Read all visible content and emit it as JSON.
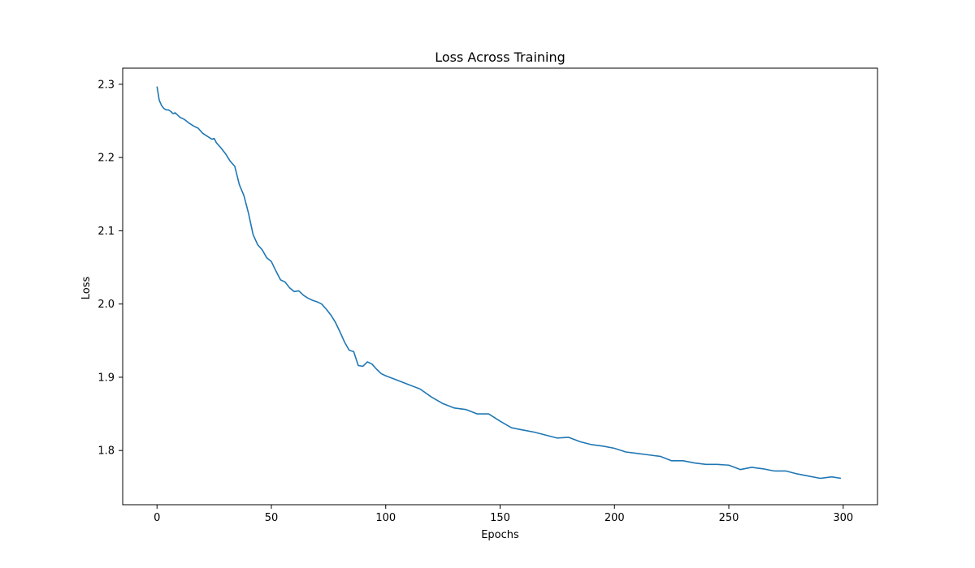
{
  "chart_data": {
    "type": "line",
    "title": "Loss Across Training",
    "xlabel": "Epochs",
    "ylabel": "Loss",
    "xlim": [
      -15,
      315
    ],
    "ylim": [
      1.726,
      2.322
    ],
    "xticks": [
      0,
      50,
      100,
      150,
      200,
      250,
      300
    ],
    "yticks": [
      1.8,
      1.9,
      2.0,
      2.1,
      2.2,
      2.3
    ],
    "grid": false,
    "color": "#1f77b4",
    "series": [
      {
        "x": [
          0,
          1,
          2,
          3,
          4,
          5,
          6,
          7,
          8,
          9,
          10,
          12,
          14,
          16,
          18,
          20,
          22,
          24,
          25,
          26,
          28,
          30,
          32,
          34,
          36,
          38,
          40,
          42,
          44,
          46,
          48,
          50,
          52,
          54,
          56,
          58,
          60,
          62,
          64,
          66,
          68,
          70,
          72,
          74,
          76,
          78,
          80,
          82,
          84,
          86,
          88,
          90,
          92,
          94,
          96,
          98,
          100,
          105,
          110,
          115,
          120,
          125,
          130,
          135,
          140,
          145,
          150,
          155,
          160,
          165,
          170,
          175,
          180,
          185,
          190,
          195,
          200,
          205,
          210,
          215,
          220,
          225,
          230,
          235,
          240,
          245,
          250,
          255,
          260,
          265,
          270,
          275,
          280,
          285,
          290,
          295,
          299
        ],
        "y": [
          2.297,
          2.278,
          2.271,
          2.267,
          2.265,
          2.265,
          2.263,
          2.26,
          2.261,
          2.258,
          2.255,
          2.252,
          2.247,
          2.243,
          2.24,
          2.233,
          2.229,
          2.225,
          2.226,
          2.22,
          2.213,
          2.205,
          2.195,
          2.188,
          2.163,
          2.148,
          2.124,
          2.095,
          2.081,
          2.074,
          2.063,
          2.058,
          2.045,
          2.033,
          2.03,
          2.022,
          2.017,
          2.018,
          2.012,
          2.008,
          2.005,
          2.003,
          2.0,
          1.993,
          1.985,
          1.975,
          1.962,
          1.948,
          1.937,
          1.935,
          1.916,
          1.915,
          1.921,
          1.918,
          1.911,
          1.905,
          1.902,
          1.896,
          1.89,
          1.884,
          1.873,
          1.864,
          1.858,
          1.856,
          1.85,
          1.85,
          1.84,
          1.831,
          1.828,
          1.825,
          1.821,
          1.817,
          1.818,
          1.812,
          1.808,
          1.806,
          1.803,
          1.798,
          1.796,
          1.794,
          1.792,
          1.786,
          1.786,
          1.783,
          1.781,
          1.781,
          1.78,
          1.774,
          1.777,
          1.775,
          1.772,
          1.772,
          1.768,
          1.765,
          1.762,
          1.764,
          1.762
        ]
      }
    ]
  }
}
